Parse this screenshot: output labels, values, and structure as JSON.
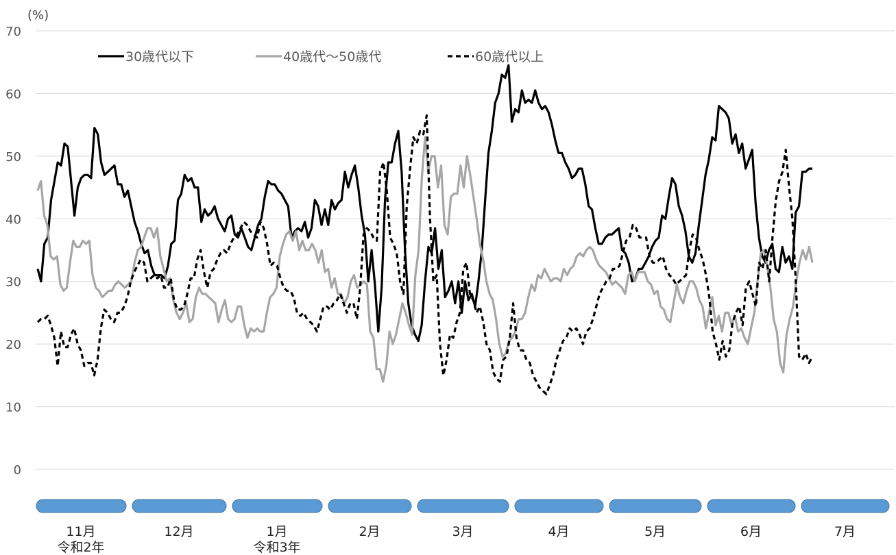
{
  "chart_data": {
    "type": "line",
    "unit_label": "(%)",
    "ylim": [
      0,
      70
    ],
    "yticks": [
      0,
      10,
      20,
      30,
      40,
      50,
      60,
      70
    ],
    "grid": true,
    "legend_position": "top-left",
    "months": [
      {
        "label": "11月",
        "era": "令和2年",
        "color": "#5B9BD5"
      },
      {
        "label": "12月",
        "era": "",
        "color": "#5B9BD5"
      },
      {
        "label": "1月",
        "era": "令和3年",
        "color": "#5B9BD5"
      },
      {
        "label": "2月",
        "era": "",
        "color": "#5B9BD5"
      },
      {
        "label": "3月",
        "era": "",
        "color": "#5B9BD5"
      },
      {
        "label": "4月",
        "era": "",
        "color": "#5B9BD5"
      },
      {
        "label": "5月",
        "era": "",
        "color": "#5B9BD5"
      },
      {
        "label": "6月",
        "era": "",
        "color": "#5B9BD5"
      },
      {
        "label": "7月",
        "era": "",
        "color": "#5B9BD5"
      }
    ],
    "x_start_month_fraction": 0.0,
    "x_end_month_fraction": 8.15,
    "series": [
      {
        "name": "30歳代以下",
        "color": "#000000",
        "style": "solid",
        "values": [
          32,
          30,
          36,
          37,
          43,
          46,
          49,
          48.5,
          52,
          51.5,
          46,
          40.5,
          45,
          46.5,
          47,
          47,
          46.5,
          54.5,
          53.5,
          49,
          47,
          47.5,
          48,
          48.5,
          45.5,
          45.5,
          43.5,
          44.5,
          42,
          39.5,
          38,
          36,
          34.5,
          35,
          32.5,
          31,
          31,
          31,
          30.5,
          32.5,
          36,
          36.5,
          43,
          44,
          47,
          46,
          46.5,
          45,
          45,
          39.5,
          41.5,
          40.5,
          41,
          42,
          40,
          39,
          38,
          40,
          40.5,
          37.5,
          37,
          38.5,
          37,
          35.5,
          35,
          37,
          39,
          40,
          43.5,
          46,
          45.5,
          45.5,
          44.5,
          44,
          43,
          42,
          37,
          38,
          38.5,
          38,
          39.5,
          37,
          38.5,
          43,
          42,
          39,
          41.5,
          39,
          43,
          41.5,
          42.5,
          43,
          47.5,
          45,
          47,
          48.5,
          45,
          40.5,
          37.5,
          30,
          35,
          29.5,
          22,
          29,
          43,
          49,
          49,
          52,
          54,
          47.5,
          35,
          26.5,
          23,
          21.5,
          20.5,
          23,
          30,
          35.5,
          34.5,
          38.5,
          32,
          35,
          27.5,
          28.5,
          30,
          26.5,
          30,
          25,
          30,
          27,
          28,
          26,
          30,
          35,
          43,
          50.5,
          54,
          58.5,
          60,
          63,
          62.5,
          64.5,
          55.5,
          57.5,
          57,
          60.5,
          58.5,
          59,
          58.5,
          60.5,
          58.5,
          57.5,
          58,
          57,
          55,
          52.5,
          50.5,
          50.5,
          49,
          48,
          46.5,
          47,
          48,
          48,
          45.5,
          42,
          41.5,
          38.5,
          36,
          36,
          37,
          37.5,
          37.5,
          38,
          38.5,
          35,
          34.5,
          33,
          30,
          30.5,
          32,
          32,
          33,
          34,
          35.5,
          36.5,
          37,
          40.5,
          40,
          43.5,
          46.5,
          45.5,
          42,
          40.5,
          38,
          34,
          33,
          34.5,
          39,
          43,
          47,
          49.5,
          53,
          52.5,
          58,
          57.5,
          57,
          56,
          52,
          53.5,
          50.5,
          52,
          48,
          49.5,
          51,
          42.5,
          37,
          34,
          33,
          35,
          36,
          32,
          31.5,
          35.5,
          33,
          34,
          32,
          41,
          42,
          47.5,
          47.5,
          48,
          48
        ]
      },
      {
        "name": "40歳代～50歳代",
        "color": "#A6A6A6",
        "style": "solid",
        "values": [
          44.5,
          46,
          40.5,
          39,
          34,
          33.5,
          34,
          29.5,
          28.5,
          29,
          33,
          36.5,
          35.5,
          35.5,
          36.5,
          36,
          36.5,
          31,
          29,
          28.5,
          27.5,
          28,
          28.5,
          28.5,
          29.5,
          30,
          29.5,
          29,
          29.5,
          30,
          33,
          35,
          35.5,
          37,
          38.5,
          38.5,
          37,
          38.5,
          34,
          32,
          30,
          30.5,
          27,
          25,
          24,
          25,
          26.5,
          23.5,
          24,
          27.5,
          29,
          28,
          28,
          27.5,
          27,
          26.5,
          23.5,
          25.5,
          27,
          24,
          23.5,
          24,
          26,
          26,
          23,
          21,
          22.5,
          22,
          22.5,
          22,
          22,
          25,
          27.5,
          28,
          29,
          34,
          36,
          37.5,
          38,
          36.5,
          38,
          35,
          36.5,
          35,
          35,
          36,
          35,
          33,
          35,
          31.5,
          32,
          29,
          30.5,
          28,
          28,
          26.5,
          27.5,
          30,
          31,
          29,
          29.5,
          30,
          29.5,
          22,
          21,
          16,
          16,
          14,
          16.5,
          22,
          20,
          21.5,
          24,
          26.5,
          25,
          23,
          21.5,
          31,
          35,
          46.5,
          53,
          47.5,
          50,
          50,
          45,
          48.5,
          39,
          37.5,
          43.5,
          44,
          44,
          48.5,
          45,
          50,
          47,
          43.5,
          40,
          36,
          33.5,
          30,
          28,
          27,
          24,
          20,
          18,
          18.5,
          20.5,
          21,
          22,
          24,
          24,
          25,
          27.5,
          29.5,
          28.5,
          31,
          30.5,
          32,
          31,
          30,
          30.5,
          30.5,
          30,
          32,
          31,
          32,
          32.5,
          34,
          34.5,
          34,
          35,
          35.5,
          35,
          33.5,
          32.5,
          32,
          31.5,
          30.5,
          29.5,
          30,
          29.5,
          29,
          28,
          31,
          31.5,
          30,
          31.5,
          31.5,
          31.5,
          30,
          29.5,
          28,
          28.5,
          26,
          25.5,
          24,
          23.5,
          26.5,
          29.5,
          27.5,
          26.5,
          28.5,
          30,
          30,
          29,
          27,
          26,
          22.5,
          25,
          27.5,
          23,
          24.5,
          22,
          25,
          25,
          23,
          24.5,
          22,
          22.5,
          21,
          20,
          22.5,
          25,
          30,
          34.5,
          35,
          32.5,
          29,
          24,
          22,
          17,
          15.5,
          21.5,
          24,
          26,
          30,
          33,
          35,
          33.5,
          35.5,
          33
        ]
      },
      {
        "name": "60歳代以上",
        "color": "#000000",
        "style": "dashed",
        "values": [
          23.5,
          24,
          24,
          24.5,
          23,
          21,
          16.5,
          22,
          19.5,
          19.5,
          21.5,
          22.5,
          20,
          19,
          16.5,
          17,
          17,
          15,
          17.5,
          22.5,
          25.5,
          25,
          24,
          23.5,
          25,
          25,
          26,
          27.5,
          30,
          31.5,
          32.5,
          33.5,
          33,
          30,
          30.5,
          31,
          30.5,
          31,
          29,
          29,
          30.5,
          27,
          25.5,
          25.5,
          26,
          28,
          30.5,
          30.5,
          33.5,
          35,
          31.5,
          29,
          31.5,
          32,
          33.5,
          34.5,
          35,
          34.5,
          36,
          37,
          37.5,
          38.5,
          39.5,
          39,
          38,
          37.5,
          37,
          39.5,
          38.5,
          36,
          32.5,
          33,
          32.5,
          30.5,
          29,
          28.5,
          28.5,
          27.5,
          25,
          24.5,
          25,
          24,
          23.5,
          23,
          22,
          24,
          26,
          26,
          25.5,
          26.5,
          27,
          28,
          26.5,
          25,
          26.5,
          26.5,
          24,
          29,
          37.5,
          38.5,
          38,
          37,
          36.5,
          47.5,
          49,
          44.5,
          37,
          36,
          34.5,
          30,
          28,
          42,
          48,
          53,
          52,
          54,
          53.5,
          56.5,
          40,
          30,
          31,
          20,
          15,
          17.5,
          21.5,
          21,
          23.5,
          25,
          32,
          33,
          28,
          27,
          25,
          26,
          23.5,
          20,
          19,
          15.5,
          14.5,
          14,
          17.5,
          18,
          21,
          26.5,
          21,
          19,
          19,
          17.5,
          17,
          15,
          14,
          13,
          12.5,
          12,
          13.5,
          15,
          17.5,
          19,
          20.5,
          21,
          22.5,
          22,
          22.5,
          21.5,
          20,
          22,
          22.5,
          24,
          26,
          28,
          29,
          30,
          30.5,
          32,
          32,
          32.5,
          34.5,
          36.5,
          37,
          39,
          38.5,
          37,
          37,
          37,
          34,
          33,
          33,
          33.5,
          34,
          32,
          31,
          30.5,
          29.5,
          30,
          30.5,
          31,
          35,
          37.5,
          37,
          35,
          33.5,
          31,
          27.5,
          22,
          20,
          17.5,
          20.5,
          18,
          19,
          23.5,
          25,
          26,
          23,
          29,
          30,
          28,
          26,
          33,
          32,
          35,
          30,
          37,
          43,
          46,
          47.5,
          51,
          45,
          40,
          30,
          18,
          17.5,
          18.5,
          17,
          18
        ]
      }
    ]
  }
}
